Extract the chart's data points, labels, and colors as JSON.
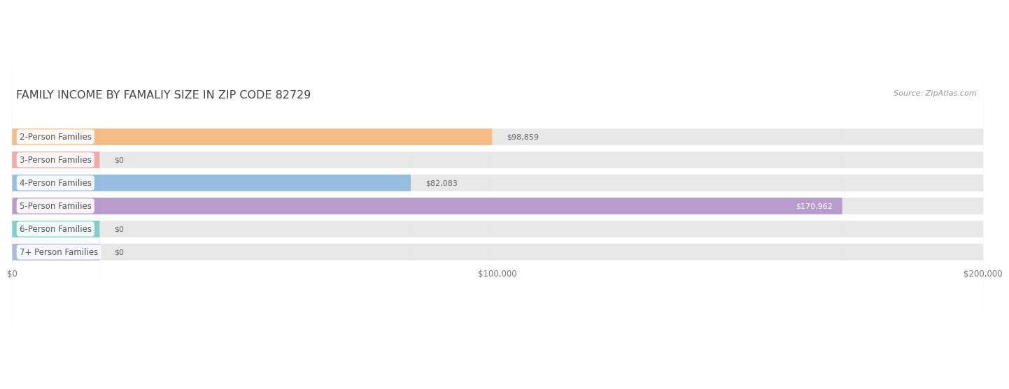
{
  "title": "FAMILY INCOME BY FAMALIY SIZE IN ZIP CODE 82729",
  "source": "Source: ZipAtlas.com",
  "categories": [
    "2-Person Families",
    "3-Person Families",
    "4-Person Families",
    "5-Person Families",
    "6-Person Families",
    "7+ Person Families"
  ],
  "values": [
    98859,
    0,
    82083,
    170962,
    0,
    0
  ],
  "zero_bar_width": 18000,
  "bar_colors": [
    "#f5bc84",
    "#f5a8a8",
    "#96bce0",
    "#b89ccc",
    "#7dd0c8",
    "#b0b8e0"
  ],
  "bar_background": "#e8e8e8",
  "xlim": [
    0,
    200000
  ],
  "xticks": [
    0,
    100000,
    200000
  ],
  "xtick_labels": [
    "$0",
    "$100,000",
    "$200,000"
  ],
  "value_labels": [
    "$98,859",
    "$0",
    "$82,083",
    "$170,962",
    "$0",
    "$0"
  ],
  "title_fontsize": 11.5,
  "source_fontsize": 8,
  "label_fontsize": 8.5,
  "value_fontsize": 8,
  "title_color": "#444444",
  "source_color": "#999999",
  "label_color": "#555555",
  "value_color_inside": "#ffffff",
  "value_color_outside": "#666666",
  "background_color": "#ffffff",
  "grid_color": "#ffffff"
}
